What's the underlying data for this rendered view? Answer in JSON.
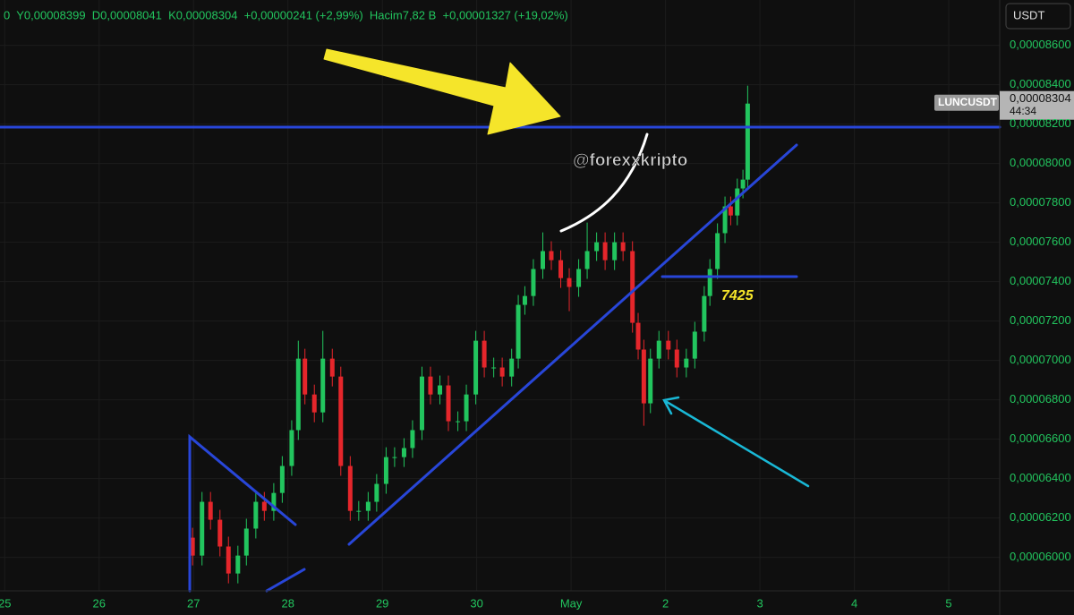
{
  "chart_data": {
    "type": "candlestick",
    "header": "0  Y0,00008399  D0,00008041  K0,00008304  +0,00000241 (+2,99%)  Hacim7,82 B  +0,00001327 (+19,02%)",
    "currency": "USDT",
    "symbol": "LUNCUSDT",
    "last_price": {
      "value": 8.304e-05,
      "label": "0,00008304"
    },
    "countdown": "44:34",
    "watermark": "@forexxkripto",
    "annotation": "7425",
    "colors": {
      "up": "#22c55e",
      "down": "#e5262b"
    },
    "grid": true,
    "xlim": [
      -0.05,
      10.54
    ],
    "ylim": [
      5.83e-05,
      8.83e-05
    ],
    "xticks": [
      {
        "value": 0,
        "label": "25"
      },
      {
        "value": 1,
        "label": "26"
      },
      {
        "value": 2,
        "label": "27"
      },
      {
        "value": 3,
        "label": "28"
      },
      {
        "value": 4,
        "label": "29"
      },
      {
        "value": 5,
        "label": "30"
      },
      {
        "value": 6,
        "label": "May"
      },
      {
        "value": 7,
        "label": "2"
      },
      {
        "value": 8,
        "label": "3"
      },
      {
        "value": 9,
        "label": "4"
      },
      {
        "value": 10,
        "label": "5"
      }
    ],
    "yticks": [
      {
        "value": 8.6e-05,
        "label": "0,00008600"
      },
      {
        "value": 8.4e-05,
        "label": "0,00008400"
      },
      {
        "value": 8.2e-05,
        "label": "0,00008200"
      },
      {
        "value": 8e-05,
        "label": "0,00008000"
      },
      {
        "value": 7.8e-05,
        "label": "0,00007800"
      },
      {
        "value": 7.6e-05,
        "label": "0,00007600"
      },
      {
        "value": 7.4e-05,
        "label": "0,00007400"
      },
      {
        "value": 7.2e-05,
        "label": "0,00007200"
      },
      {
        "value": 7e-05,
        "label": "0,00007000"
      },
      {
        "value": 6.8e-05,
        "label": "0,00006800"
      },
      {
        "value": 6.6e-05,
        "label": "0,00006600"
      },
      {
        "value": 6.4e-05,
        "label": "0,00006400"
      },
      {
        "value": 6.2e-05,
        "label": "0,00006200"
      },
      {
        "value": 6e-05,
        "label": "0,00006000"
      }
    ],
    "x": [
      1.99,
      2.09,
      2.18,
      2.28,
      2.37,
      2.47,
      2.56,
      2.66,
      2.75,
      2.85,
      2.94,
      3.04,
      3.11,
      3.18,
      3.28,
      3.37,
      3.47,
      3.56,
      3.66,
      3.75,
      3.85,
      3.94,
      4.04,
      4.13,
      4.23,
      4.32,
      4.42,
      4.51,
      4.61,
      4.7,
      4.8,
      4.89,
      4.99,
      5.08,
      5.18,
      5.27,
      5.37,
      5.44,
      5.51,
      5.6,
      5.7,
      5.79,
      5.89,
      5.98,
      6.08,
      6.17,
      6.27,
      6.36,
      6.46,
      6.55,
      6.65,
      6.71,
      6.77,
      6.84,
      6.93,
      7.03,
      7.12,
      7.22,
      7.31,
      7.41,
      7.47,
      7.55,
      7.63,
      7.69,
      7.76,
      7.82,
      7.87
    ],
    "open": [
      6.1e-05,
      6.009e-05,
      6.282e-05,
      6.191e-05,
      6.055e-05,
      5.918e-05,
      6.009e-05,
      6.146e-05,
      6.282e-05,
      6.236e-05,
      6.327e-05,
      6.464e-05,
      6.646e-05,
      7.009e-05,
      6.827e-05,
      6.736e-05,
      7.009e-05,
      6.918e-05,
      6.464e-05,
      6.236e-05,
      6.236e-05,
      6.282e-05,
      6.373e-05,
      6.509e-05,
      6.509e-05,
      6.555e-05,
      6.646e-05,
      6.918e-05,
      6.827e-05,
      6.873e-05,
      6.691e-05,
      6.691e-05,
      6.827e-05,
      7.1e-05,
      6.964e-05,
      6.964e-05,
      6.918e-05,
      7.009e-05,
      7.282e-05,
      7.327e-05,
      7.464e-05,
      7.555e-05,
      7.509e-05,
      7.418e-05,
      7.373e-05,
      7.464e-05,
      7.555e-05,
      7.6e-05,
      7.509e-05,
      7.6e-05,
      7.555e-05,
      7.191e-05,
      7.055e-05,
      6.782e-05,
      7.009e-05,
      7.1e-05,
      7.055e-05,
      6.964e-05,
      7.009e-05,
      7.146e-05,
      7.327e-05,
      7.464e-05,
      7.646e-05,
      7.782e-05,
      7.736e-05,
      7.873e-05,
      7.918e-05
    ],
    "high": [
      6.15e-05,
      6.332e-05,
      6.332e-05,
      6.241e-05,
      6.105e-05,
      6.059e-05,
      6.196e-05,
      6.332e-05,
      6.332e-05,
      6.377e-05,
      6.514e-05,
      6.696e-05,
      7.1e-05,
      7.059e-05,
      6.877e-05,
      7.15e-05,
      7.059e-05,
      6.968e-05,
      6.514e-05,
      6.286e-05,
      6.332e-05,
      6.423e-05,
      6.559e-05,
      6.559e-05,
      6.605e-05,
      6.696e-05,
      6.968e-05,
      6.968e-05,
      6.923e-05,
      6.923e-05,
      6.741e-05,
      6.877e-05,
      7.15e-05,
      7.15e-05,
      7.014e-05,
      7.014e-05,
      7.059e-05,
      7.332e-05,
      7.377e-05,
      7.514e-05,
      7.65e-05,
      7.605e-05,
      7.559e-05,
      7.468e-05,
      7.514e-05,
      7.7e-05,
      7.65e-05,
      7.65e-05,
      7.65e-05,
      7.65e-05,
      7.605e-05,
      7.241e-05,
      7.105e-05,
      7.059e-05,
      7.15e-05,
      7.15e-05,
      7.105e-05,
      7.059e-05,
      7.196e-05,
      7.377e-05,
      7.514e-05,
      7.696e-05,
      7.832e-05,
      7.832e-05,
      7.923e-05,
      7.968e-05,
      8.395e-05
    ],
    "low": [
      5.959e-05,
      5.959e-05,
      6.141e-05,
      6.005e-05,
      5.868e-05,
      5.868e-05,
      5.959e-05,
      6.096e-05,
      6.186e-05,
      6.186e-05,
      6.277e-05,
      6.414e-05,
      6.596e-05,
      6.777e-05,
      6.686e-05,
      6.686e-05,
      6.868e-05,
      6.414e-05,
      6.186e-05,
      6.186e-05,
      6.186e-05,
      6.232e-05,
      6.323e-05,
      6.459e-05,
      6.459e-05,
      6.505e-05,
      6.596e-05,
      6.777e-05,
      6.777e-05,
      6.641e-05,
      6.641e-05,
      6.641e-05,
      6.777e-05,
      6.914e-05,
      6.914e-05,
      6.868e-05,
      6.868e-05,
      6.959e-05,
      7.232e-05,
      7.277e-05,
      7.414e-05,
      7.459e-05,
      7.368e-05,
      7.25e-05,
      7.323e-05,
      7.414e-05,
      7.505e-05,
      7.459e-05,
      7.459e-05,
      7.505e-05,
      7.141e-05,
      7.005e-05,
      6.668e-05,
      6.732e-05,
      6.959e-05,
      7.005e-05,
      6.914e-05,
      6.914e-05,
      6.959e-05,
      7.096e-05,
      7.277e-05,
      7.414e-05,
      7.596e-05,
      7.686e-05,
      7.686e-05,
      7.823e-05,
      7.868e-05
    ],
    "close": [
      6.009e-05,
      6.282e-05,
      6.191e-05,
      6.055e-05,
      5.918e-05,
      6.009e-05,
      6.146e-05,
      6.282e-05,
      6.236e-05,
      6.327e-05,
      6.464e-05,
      6.646e-05,
      7.009e-05,
      6.827e-05,
      6.736e-05,
      7.009e-05,
      6.918e-05,
      6.464e-05,
      6.236e-05,
      6.236e-05,
      6.282e-05,
      6.373e-05,
      6.509e-05,
      6.509e-05,
      6.555e-05,
      6.646e-05,
      6.918e-05,
      6.827e-05,
      6.873e-05,
      6.691e-05,
      6.691e-05,
      6.827e-05,
      7.1e-05,
      6.964e-05,
      6.964e-05,
      6.918e-05,
      7.009e-05,
      7.282e-05,
      7.327e-05,
      7.464e-05,
      7.555e-05,
      7.509e-05,
      7.418e-05,
      7.373e-05,
      7.464e-05,
      7.555e-05,
      7.6e-05,
      7.509e-05,
      7.6e-05,
      7.555e-05,
      7.191e-05,
      7.055e-05,
      6.782e-05,
      7.009e-05,
      7.1e-05,
      7.055e-05,
      6.964e-05,
      7.009e-05,
      7.146e-05,
      7.327e-05,
      7.464e-05,
      7.646e-05,
      7.782e-05,
      7.736e-05,
      7.873e-05,
      7.918e-05,
      8.304e-05
    ]
  }
}
